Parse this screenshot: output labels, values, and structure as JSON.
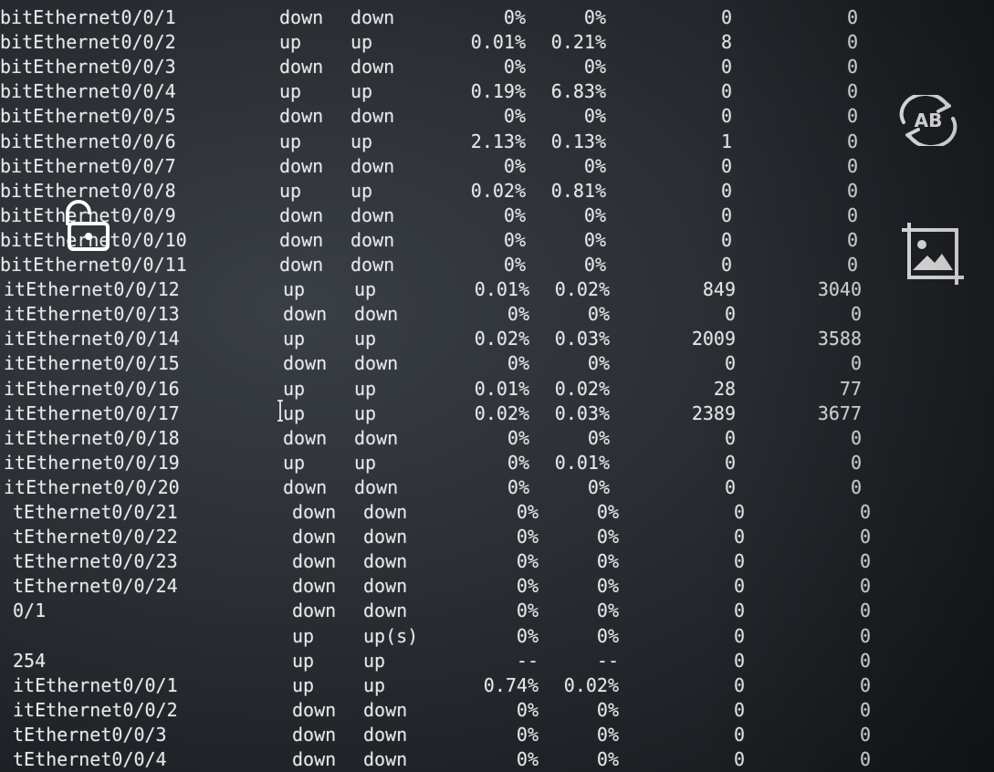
{
  "terminal": {
    "rows": [
      {
        "iface": "bitEthernet0/0/1",
        "phy": "down",
        "proto": "down",
        "in_uti": "0%",
        "out_uti": "0%",
        "in_err": "0",
        "out_err": "0"
      },
      {
        "iface": "bitEthernet0/0/2",
        "phy": "up",
        "proto": "up",
        "in_uti": "0.01%",
        "out_uti": "0.21%",
        "in_err": "8",
        "out_err": "0"
      },
      {
        "iface": "bitEthernet0/0/3",
        "phy": "down",
        "proto": "down",
        "in_uti": "0%",
        "out_uti": "0%",
        "in_err": "0",
        "out_err": "0"
      },
      {
        "iface": "bitEthernet0/0/4",
        "phy": "up",
        "proto": "up",
        "in_uti": "0.19%",
        "out_uti": "6.83%",
        "in_err": "0",
        "out_err": "0"
      },
      {
        "iface": "bitEthernet0/0/5",
        "phy": "down",
        "proto": "down",
        "in_uti": "0%",
        "out_uti": "0%",
        "in_err": "0",
        "out_err": "0"
      },
      {
        "iface": "bitEthernet0/0/6",
        "phy": "up",
        "proto": "up",
        "in_uti": "2.13%",
        "out_uti": "0.13%",
        "in_err": "1",
        "out_err": "0"
      },
      {
        "iface": "bitEthernet0/0/7",
        "phy": "down",
        "proto": "down",
        "in_uti": "0%",
        "out_uti": "0%",
        "in_err": "0",
        "out_err": "0"
      },
      {
        "iface": "bitEthernet0/0/8",
        "phy": "up",
        "proto": "up",
        "in_uti": "0.02%",
        "out_uti": "0.81%",
        "in_err": "0",
        "out_err": "0"
      },
      {
        "iface": "bitEthernet0/0/9",
        "phy": "down",
        "proto": "down",
        "in_uti": "0%",
        "out_uti": "0%",
        "in_err": "0",
        "out_err": "0"
      },
      {
        "iface": "bitEthernet0/0/10",
        "phy": "down",
        "proto": "down",
        "in_uti": "0%",
        "out_uti": "0%",
        "in_err": "0",
        "out_err": "0"
      },
      {
        "iface": "bitEthernet0/0/11",
        "phy": "down",
        "proto": "down",
        "in_uti": "0%",
        "out_uti": "0%",
        "in_err": "0",
        "out_err": "0"
      },
      {
        "iface": "itEthernet0/0/12",
        "phy": "up",
        "proto": "up",
        "in_uti": "0.01%",
        "out_uti": "0.02%",
        "in_err": "849",
        "out_err": "3040"
      },
      {
        "iface": "itEthernet0/0/13",
        "phy": "down",
        "proto": "down",
        "in_uti": "0%",
        "out_uti": "0%",
        "in_err": "0",
        "out_err": "0"
      },
      {
        "iface": "itEthernet0/0/14",
        "phy": "up",
        "proto": "up",
        "in_uti": "0.02%",
        "out_uti": "0.03%",
        "in_err": "2009",
        "out_err": "3588"
      },
      {
        "iface": "itEthernet0/0/15",
        "phy": "down",
        "proto": "down",
        "in_uti": "0%",
        "out_uti": "0%",
        "in_err": "0",
        "out_err": "0"
      },
      {
        "iface": "itEthernet0/0/16",
        "phy": "up",
        "proto": "up",
        "in_uti": "0.01%",
        "out_uti": "0.02%",
        "in_err": "28",
        "out_err": "77"
      },
      {
        "iface": "itEthernet0/0/17",
        "phy": "up",
        "proto": "up",
        "in_uti": "0.02%",
        "out_uti": "0.03%",
        "in_err": "2389",
        "out_err": "3677"
      },
      {
        "iface": "itEthernet0/0/18",
        "phy": "down",
        "proto": "down",
        "in_uti": "0%",
        "out_uti": "0%",
        "in_err": "0",
        "out_err": "0"
      },
      {
        "iface": "itEthernet0/0/19",
        "phy": "up",
        "proto": "up",
        "in_uti": "0%",
        "out_uti": "0.01%",
        "in_err": "0",
        "out_err": "0"
      },
      {
        "iface": "itEthernet0/0/20",
        "phy": "down",
        "proto": "down",
        "in_uti": "0%",
        "out_uti": "0%",
        "in_err": "0",
        "out_err": "0"
      },
      {
        "iface": "tEthernet0/0/21",
        "phy": "down",
        "proto": "down",
        "in_uti": "0%",
        "out_uti": "0%",
        "in_err": "0",
        "out_err": "0"
      },
      {
        "iface": "tEthernet0/0/22",
        "phy": "down",
        "proto": "down",
        "in_uti": "0%",
        "out_uti": "0%",
        "in_err": "0",
        "out_err": "0"
      },
      {
        "iface": "tEthernet0/0/23",
        "phy": "down",
        "proto": "down",
        "in_uti": "0%",
        "out_uti": "0%",
        "in_err": "0",
        "out_err": "0"
      },
      {
        "iface": "tEthernet0/0/24",
        "phy": "down",
        "proto": "down",
        "in_uti": "0%",
        "out_uti": "0%",
        "in_err": "0",
        "out_err": "0"
      },
      {
        "iface": "0/1",
        "phy": "down",
        "proto": "down",
        "in_uti": "0%",
        "out_uti": "0%",
        "in_err": "0",
        "out_err": "0"
      },
      {
        "iface": "",
        "phy": "up",
        "proto": "up(s)",
        "in_uti": "0%",
        "out_uti": "0%",
        "in_err": "0",
        "out_err": "0"
      },
      {
        "iface": "254",
        "phy": "up",
        "proto": "up",
        "in_uti": "--",
        "out_uti": "--",
        "in_err": "0",
        "out_err": "0"
      },
      {
        "iface": "itEthernet0/0/1",
        "phy": "up",
        "proto": "up",
        "in_uti": "0.74%",
        "out_uti": "0.02%",
        "in_err": "0",
        "out_err": "0"
      },
      {
        "iface": "itEthernet0/0/2",
        "phy": "down",
        "proto": "down",
        "in_uti": "0%",
        "out_uti": "0%",
        "in_err": "0",
        "out_err": "0"
      },
      {
        "iface": "tEthernet0/0/3",
        "phy": "down",
        "proto": "down",
        "in_uti": "0%",
        "out_uti": "0%",
        "in_err": "0",
        "out_err": "0"
      },
      {
        "iface": "tEthernet0/0/4",
        "phy": "down",
        "proto": "down",
        "in_uti": "0%",
        "out_uti": "0%",
        "in_err": "0",
        "out_err": "0"
      }
    ]
  },
  "icons": {
    "translate": "translate-ab-icon",
    "image": "image-search-icon",
    "unlock": "unlock-icon"
  },
  "colors": {
    "text": "#e6e8ea",
    "background": "#2a2e33",
    "icon": "#ffffff"
  }
}
